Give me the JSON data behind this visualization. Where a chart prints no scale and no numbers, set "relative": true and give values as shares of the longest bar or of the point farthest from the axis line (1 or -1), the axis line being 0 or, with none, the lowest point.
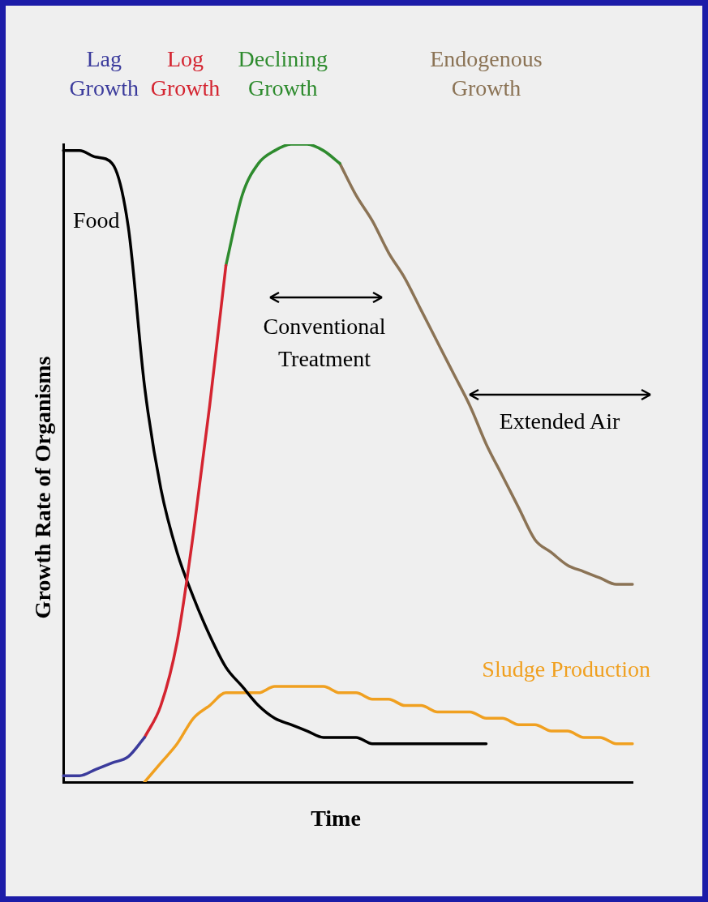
{
  "chart_data": {
    "type": "line",
    "relative": true,
    "xlabel": "Time",
    "ylabel": "Growth Rate of Organisms",
    "legend": false,
    "grid": false,
    "marker": "none",
    "line_style": "solid",
    "categories": [
      null,
      null,
      null,
      null,
      null,
      null,
      null,
      null,
      null,
      null,
      null,
      null,
      null,
      null,
      null,
      null,
      null,
      null,
      null,
      null,
      null,
      null,
      null,
      null,
      null,
      null,
      null,
      null,
      null,
      null,
      null,
      null,
      null,
      null,
      null,
      null
    ],
    "series": [
      {
        "name": "Lag Growth",
        "color": "#3b3b9c",
        "values": [
          0.01,
          0.01,
          0.02,
          0.03,
          0.04,
          0.07,
          null,
          null,
          null,
          null,
          null,
          null,
          null,
          null,
          null,
          null,
          null,
          null,
          null,
          null,
          null,
          null,
          null,
          null,
          null,
          null,
          null,
          null,
          null,
          null,
          null,
          null,
          null,
          null,
          null,
          null
        ]
      },
      {
        "name": "Log Growth",
        "color": "#d42430",
        "values": [
          null,
          null,
          null,
          null,
          null,
          0.07,
          0.12,
          0.22,
          0.39,
          0.59,
          0.81,
          null,
          null,
          null,
          null,
          null,
          null,
          null,
          null,
          null,
          null,
          null,
          null,
          null,
          null,
          null,
          null,
          null,
          null,
          null,
          null,
          null,
          null,
          null,
          null,
          null
        ]
      },
      {
        "name": "Declining Growth",
        "color": "#2e8b2e",
        "values": [
          null,
          null,
          null,
          null,
          null,
          null,
          null,
          null,
          null,
          null,
          0.81,
          0.92,
          0.97,
          0.99,
          1.0,
          1.0,
          0.99,
          0.97,
          null,
          null,
          null,
          null,
          null,
          null,
          null,
          null,
          null,
          null,
          null,
          null,
          null,
          null,
          null,
          null,
          null,
          null
        ]
      },
      {
        "name": "Endogenous Growth",
        "color": "#8b7355",
        "values": [
          null,
          null,
          null,
          null,
          null,
          null,
          null,
          null,
          null,
          null,
          null,
          null,
          null,
          null,
          null,
          null,
          null,
          0.97,
          0.92,
          0.88,
          0.83,
          0.79,
          0.74,
          0.69,
          0.64,
          0.59,
          0.53,
          0.48,
          0.43,
          0.38,
          0.36,
          0.34,
          0.33,
          0.32,
          0.31,
          0.31
        ]
      },
      {
        "name": "Food",
        "color": "#000000",
        "values": [
          0.99,
          0.99,
          0.98,
          0.97,
          0.87,
          0.62,
          0.46,
          0.36,
          0.29,
          0.23,
          0.18,
          0.15,
          0.12,
          0.1,
          0.09,
          0.08,
          0.07,
          0.07,
          0.07,
          0.06,
          0.06,
          0.06,
          0.06,
          0.06,
          0.06,
          0.06,
          0.06,
          null,
          null,
          null,
          null,
          null,
          null,
          null,
          null,
          null
        ]
      },
      {
        "name": "Sludge Production",
        "color": "#f0a020",
        "values": [
          null,
          null,
          null,
          null,
          null,
          0,
          0.03,
          0.06,
          0.1,
          0.12,
          0.14,
          0.14,
          0.14,
          0.15,
          0.15,
          0.15,
          0.15,
          0.14,
          0.14,
          0.13,
          0.13,
          0.12,
          0.12,
          0.11,
          0.11,
          0.11,
          0.1,
          0.1,
          0.09,
          0.09,
          0.08,
          0.08,
          0.07,
          0.07,
          0.06,
          0.06
        ]
      }
    ],
    "annotations": [
      "Conventional Treatment",
      "Extended Air"
    ]
  }
}
